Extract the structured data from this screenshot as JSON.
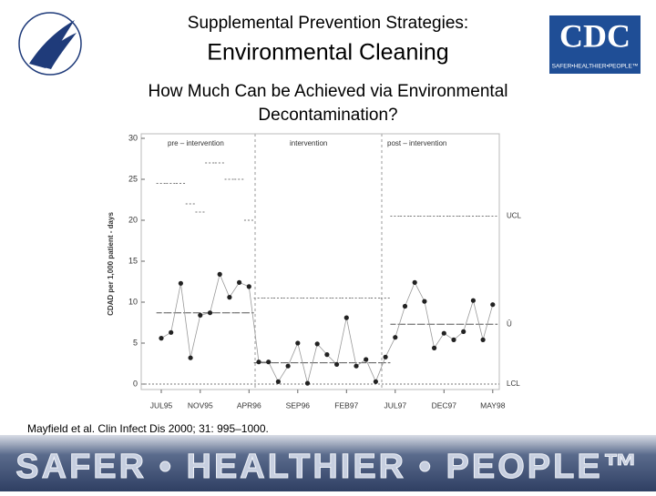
{
  "header": {
    "title": "Supplemental Prevention Strategies:",
    "subtitle": "Environmental Cleaning",
    "question": "How Much Can be Achieved via Environmental Decontamination?",
    "logo_text": "CDC",
    "logo_tagline": "SAFER•HEALTHIER•PEOPLE™"
  },
  "chart_data": {
    "type": "line",
    "ylabel": "CDAD per 1,000 patient - days",
    "ylim": [
      0,
      30
    ],
    "yticks": [
      0,
      5,
      10,
      15,
      20,
      25,
      30
    ],
    "xticks": [
      "JUL95",
      "NOV95",
      "APR96",
      "SEP96",
      "FEB97",
      "JUL97",
      "DEC97",
      "MAY98"
    ],
    "xtick_index": [
      0,
      4,
      9,
      14,
      19,
      24,
      29,
      34
    ],
    "phases": [
      "pre – intervention",
      "intervention",
      "post – intervention"
    ],
    "limit_labels": [
      "UCL",
      "Ū",
      "LCL"
    ],
    "values": [
      5.6,
      6.3,
      12.3,
      3.2,
      8.4,
      8.7,
      13.4,
      10.6,
      12.4,
      11.9,
      2.7,
      2.7,
      0.3,
      2.2,
      5.0,
      0.1,
      4.9,
      3.6,
      2.4,
      8.1,
      2.2,
      3.0,
      0.3,
      3.3,
      5.7,
      9.5,
      12.4,
      10.1,
      4.4,
      6.2,
      5.4,
      6.4,
      10.2,
      5.4,
      9.7
    ],
    "center": [
      8.7,
      8.7,
      8.7,
      8.7,
      8.7,
      8.7,
      8.7,
      8.7,
      8.7,
      8.7,
      2.6,
      2.6,
      2.6,
      2.6,
      2.6,
      2.6,
      2.6,
      2.6,
      2.6,
      2.6,
      2.6,
      2.6,
      2.6,
      2.6,
      7.3,
      7.3,
      7.3,
      7.3,
      7.3,
      7.3,
      7.3,
      7.3,
      7.3,
      7.3,
      7.3
    ],
    "ucl": [
      24.5,
      24.5,
      24.5,
      22,
      21,
      27,
      27,
      25,
      25,
      20,
      10.5,
      10.5,
      10.5,
      10.5,
      10.5,
      10.5,
      10.5,
      10.5,
      10.5,
      10.5,
      10.5,
      10.5,
      10.5,
      10.5,
      20.5,
      20.5,
      20.5,
      20.5,
      20.5,
      20.5,
      20.5,
      20.5,
      20.5,
      20.5,
      20.5
    ],
    "lcl": 0,
    "color": "#222222"
  },
  "citation": "Mayfield et al. Clin Infect Dis 2000; 31: 995–1000.",
  "footer": "SAFER • HEALTHIER • PEOPLE™"
}
